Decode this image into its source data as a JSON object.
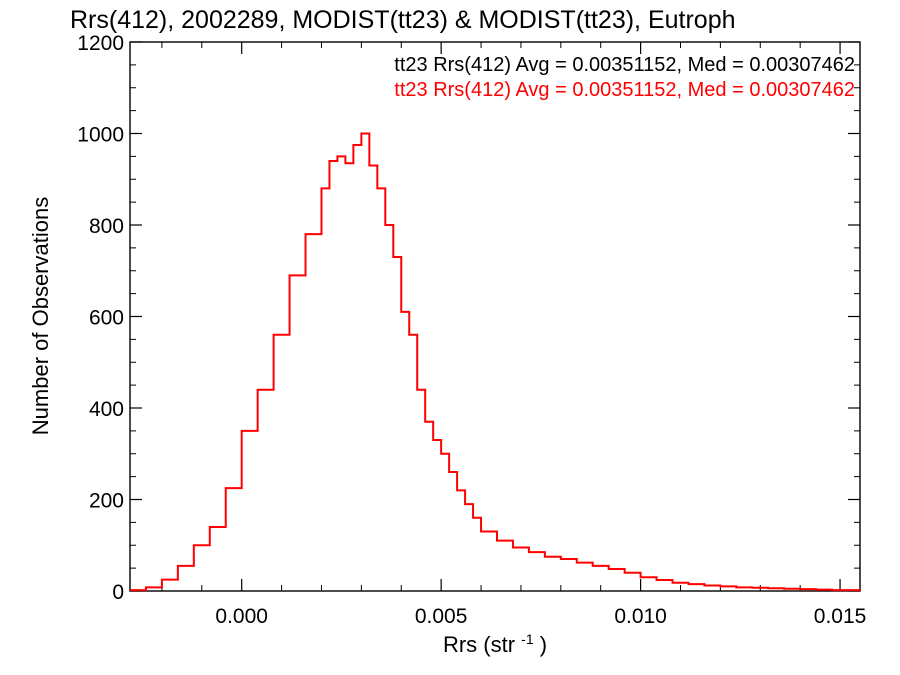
{
  "chart_data": {
    "type": "histogram",
    "title": "Rrs(412), 2002289, MODIST(tt23) & MODIST(tt23), Eutroph",
    "xlabel": "Rrs (str",
    "xlabel_sup": "-1",
    "xlabel_end": ")",
    "ylabel": "Number of Observations",
    "xlim": [
      -0.0028,
      0.0155
    ],
    "ylim": [
      0,
      1200
    ],
    "xticks": [
      0.0,
      0.005,
      0.01,
      0.015
    ],
    "xtick_labels": [
      "0.000",
      "0.005",
      "0.010",
      "0.015"
    ],
    "yticks": [
      0,
      200,
      400,
      600,
      800,
      1000,
      1200
    ],
    "ytick_labels": [
      "0",
      "200",
      "400",
      "600",
      "800",
      "1000",
      "1200"
    ],
    "grid": false,
    "annotations": [
      {
        "text": "tt23 Rrs(412) Avg = 0.00351152, Med = 0.00307462",
        "color": "#000000"
      },
      {
        "text": "tt23 Rrs(412) Avg = 0.00351152, Med = 0.00307462",
        "color": "#ff0000"
      }
    ],
    "series": [
      {
        "color": "#ff0000",
        "x": [
          -0.0028,
          -0.0024,
          -0.002,
          -0.0016,
          -0.0012,
          -0.0008,
          -0.0004,
          0.0,
          0.0004,
          0.0008,
          0.0012,
          0.0016,
          0.002,
          0.0022,
          0.0024,
          0.0026,
          0.0028,
          0.003,
          0.0032,
          0.0034,
          0.0036,
          0.0038,
          0.004,
          0.0042,
          0.0044,
          0.0046,
          0.0048,
          0.005,
          0.0052,
          0.0054,
          0.0056,
          0.0058,
          0.006,
          0.0064,
          0.0068,
          0.0072,
          0.0076,
          0.008,
          0.0084,
          0.0088,
          0.0092,
          0.0096,
          0.01,
          0.0104,
          0.0108,
          0.0112,
          0.0116,
          0.012,
          0.0124,
          0.0128,
          0.0132,
          0.0136,
          0.014,
          0.0144,
          0.0148,
          0.0152,
          0.0155
        ],
        "y": [
          2,
          8,
          25,
          55,
          100,
          140,
          225,
          350,
          440,
          560,
          690,
          780,
          880,
          940,
          950,
          935,
          975,
          1000,
          930,
          880,
          800,
          730,
          610,
          560,
          440,
          370,
          330,
          300,
          260,
          220,
          190,
          160,
          130,
          110,
          95,
          85,
          75,
          70,
          62,
          55,
          48,
          40,
          30,
          24,
          18,
          15,
          12,
          10,
          8,
          7,
          6,
          5,
          4,
          3,
          2,
          2,
          1
        ]
      }
    ]
  }
}
